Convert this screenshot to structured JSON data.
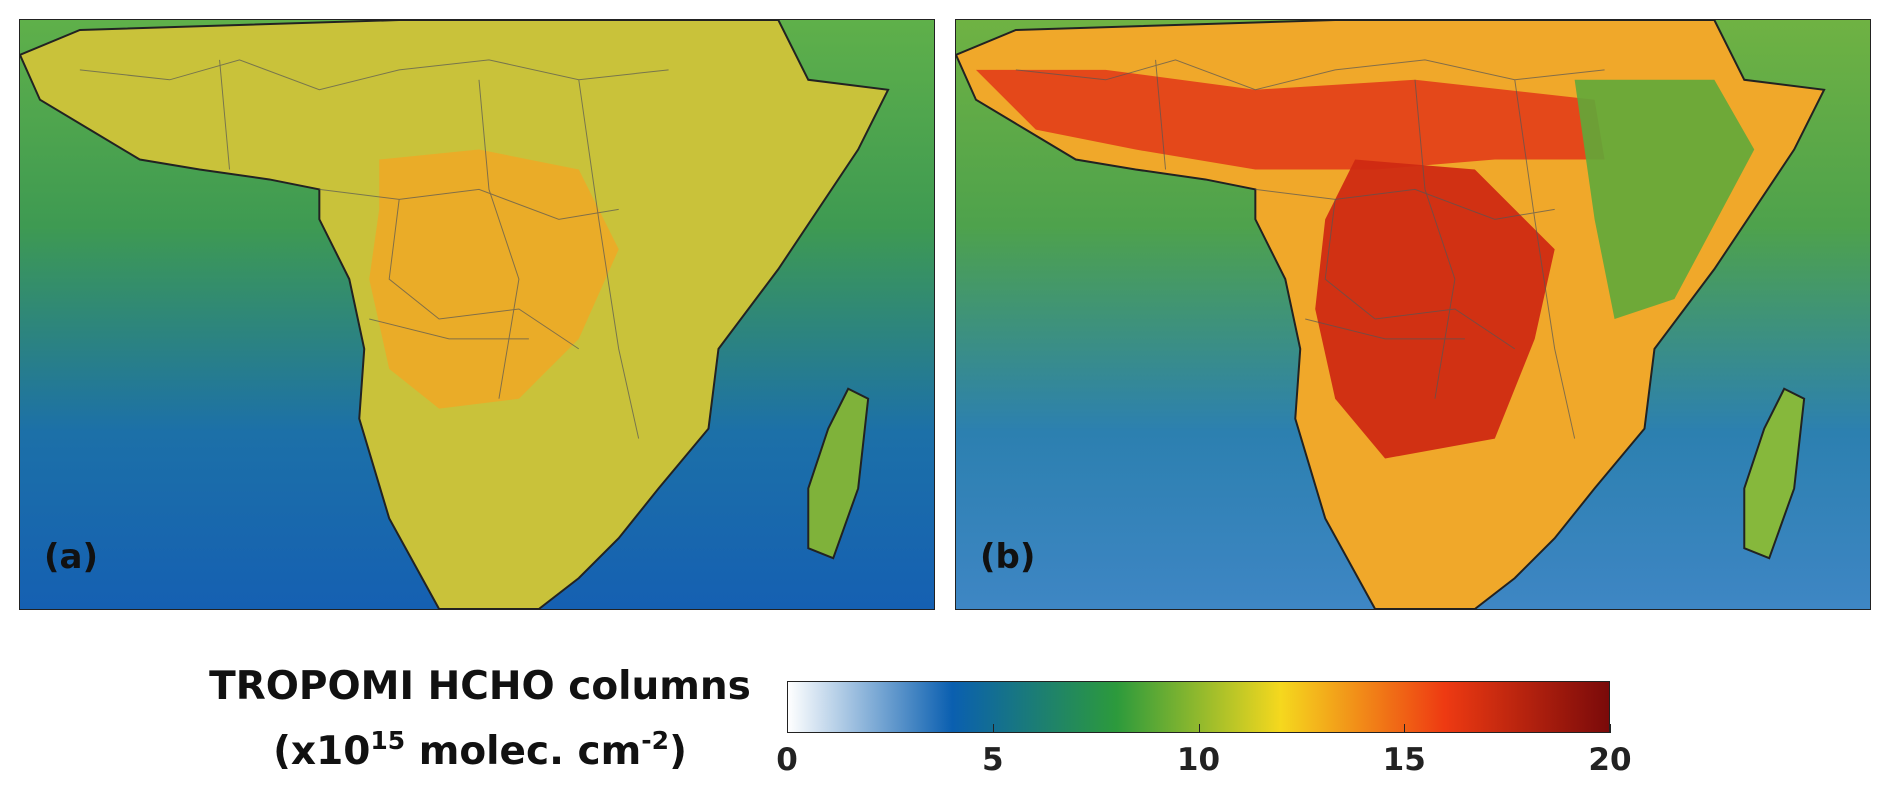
{
  "panels": [
    {
      "label": "(a)",
      "intensity": 0.0
    },
    {
      "label": "(b)",
      "intensity": 1.0
    }
  ],
  "colorbar": {
    "title_line1": "TROPOMI HCHO columns",
    "title_line2_prefix": "(x10",
    "title_line2_exp": "15",
    "title_line2_mid": " molec. cm",
    "title_line2_exp2": "-2",
    "title_line2_suffix": ")",
    "min": 0,
    "max": 20,
    "ticks": [
      "0",
      "5",
      "10",
      "15",
      "20"
    ],
    "colors": [
      "#ffffff",
      "#0a5fb0",
      "#2c9a3c",
      "#f5d81e",
      "#ee3a12",
      "#7a0a0a"
    ]
  }
}
